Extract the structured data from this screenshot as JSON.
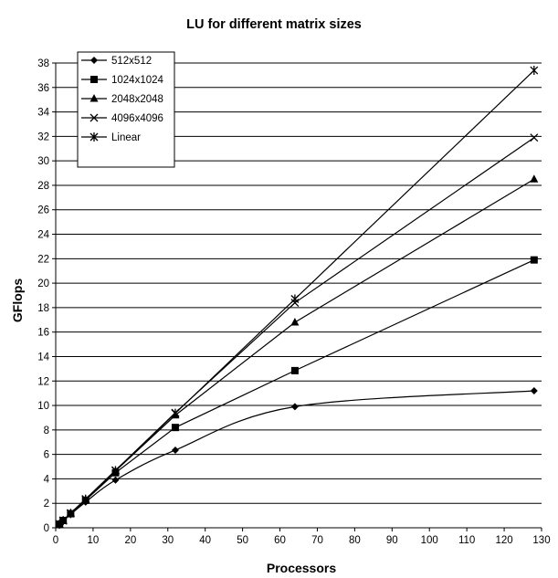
{
  "chart_data": {
    "type": "line",
    "title": "LU for different matrix sizes",
    "xlabel": "Processors",
    "ylabel": "GFlops",
    "xlim": [
      0,
      130
    ],
    "ylim": [
      0,
      38
    ],
    "xticks": [
      0,
      10,
      20,
      30,
      40,
      50,
      60,
      70,
      80,
      90,
      100,
      110,
      120,
      130
    ],
    "yticks": [
      0,
      2,
      4,
      6,
      8,
      10,
      12,
      14,
      16,
      18,
      20,
      22,
      24,
      26,
      28,
      30,
      32,
      34,
      36,
      38
    ],
    "grid": "horizontal",
    "legend_position": "top-left",
    "line_color": "#000000",
    "series": [
      {
        "name": "512x512",
        "marker": "diamond",
        "smooth": true,
        "x": [
          1,
          2,
          4,
          8,
          16,
          32,
          64,
          128
        ],
        "y": [
          0.3,
          0.55,
          1.1,
          2.1,
          3.9,
          6.35,
          9.9,
          11.2
        ]
      },
      {
        "name": "1024x1024",
        "marker": "square",
        "smooth": false,
        "x": [
          1,
          2,
          4,
          8,
          16,
          32,
          64,
          128
        ],
        "y": [
          0.3,
          0.6,
          1.15,
          2.25,
          4.5,
          8.2,
          12.85,
          21.9
        ]
      },
      {
        "name": "2048x2048",
        "marker": "triangle",
        "smooth": false,
        "x": [
          1,
          2,
          4,
          8,
          16,
          32,
          64,
          128
        ],
        "y": [
          0.3,
          0.6,
          1.2,
          2.3,
          4.65,
          9.2,
          16.8,
          28.5
        ]
      },
      {
        "name": "4096x4096",
        "marker": "x",
        "smooth": false,
        "x": [
          1,
          2,
          4,
          8,
          16,
          32,
          64,
          128
        ],
        "y": [
          0.3,
          0.6,
          1.2,
          2.35,
          4.7,
          9.4,
          18.4,
          31.9
        ]
      },
      {
        "name": "Linear",
        "marker": "star",
        "smooth": false,
        "x": [
          1,
          2,
          4,
          8,
          16,
          32,
          64,
          128
        ],
        "y": [
          0.29,
          0.58,
          1.17,
          2.34,
          4.68,
          9.36,
          18.7,
          37.4
        ]
      }
    ]
  }
}
